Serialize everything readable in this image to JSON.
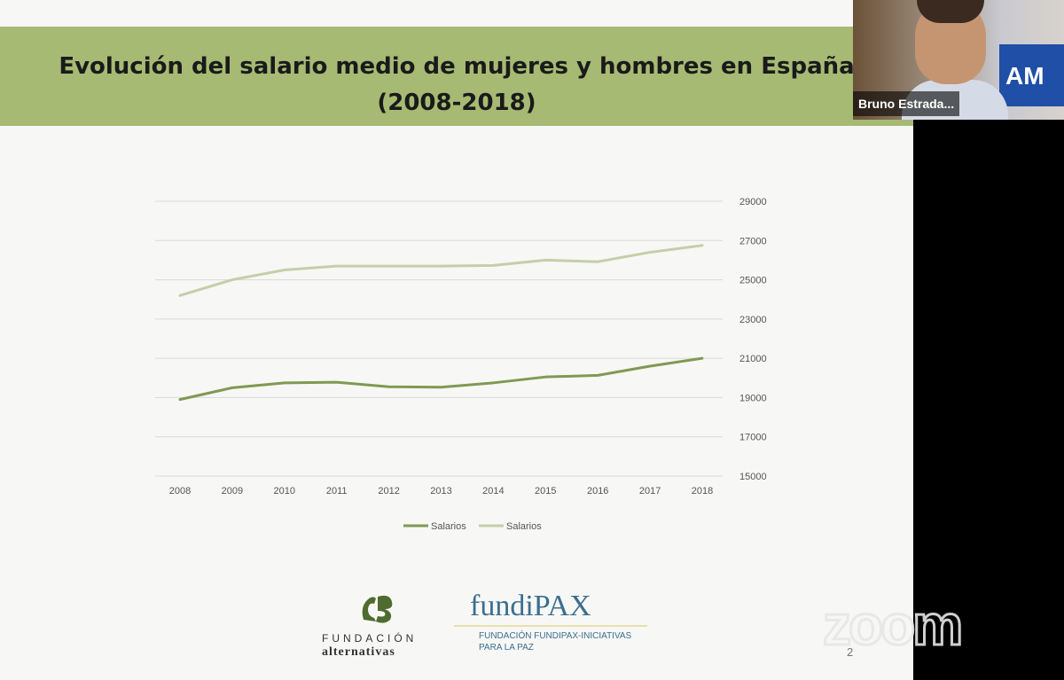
{
  "slide": {
    "title_line1": "Evolución del salario medio de mujeres y hombres en España",
    "title_line2": "(2008-2018)",
    "page_number": "2",
    "band_color": "#a6ba74"
  },
  "chart_data": {
    "type": "line",
    "x": [
      "2008",
      "2009",
      "2010",
      "2011",
      "2012",
      "2013",
      "2014",
      "2015",
      "2016",
      "2017",
      "2018"
    ],
    "series": [
      {
        "name": "Salarios",
        "color": "#7f9a52",
        "values": [
          18900,
          19500,
          19750,
          19780,
          19550,
          19530,
          19750,
          20050,
          20130,
          20600,
          21000
        ]
      },
      {
        "name": "Salarios",
        "color": "#c4cfa8",
        "values": [
          24200,
          25000,
          25500,
          25700,
          25700,
          25700,
          25730,
          26000,
          25920,
          26400,
          26750
        ]
      }
    ],
    "ylim": [
      15000,
      29000
    ],
    "yticks": [
      "29000",
      "27000",
      "25000",
      "23000",
      "21000",
      "19000",
      "17000",
      "15000"
    ],
    "grid": true,
    "axis_position": "right",
    "legend_placement": "bottom"
  },
  "logos": {
    "fundacion_mark": "FA",
    "fundacion_line1": "FUNDACIÓN",
    "fundacion_line2": "alternativas",
    "fundipax_name": "fundiPAX",
    "fundipax_line1": "FUNDACIÓN FUNDIPAX-INICIATIVAS",
    "fundipax_line2": "PARA LA PAZ"
  },
  "zoom": {
    "watermark": "zoom"
  },
  "video": {
    "participant_name": "Bruno Estrada...",
    "banner_text": "AM"
  }
}
